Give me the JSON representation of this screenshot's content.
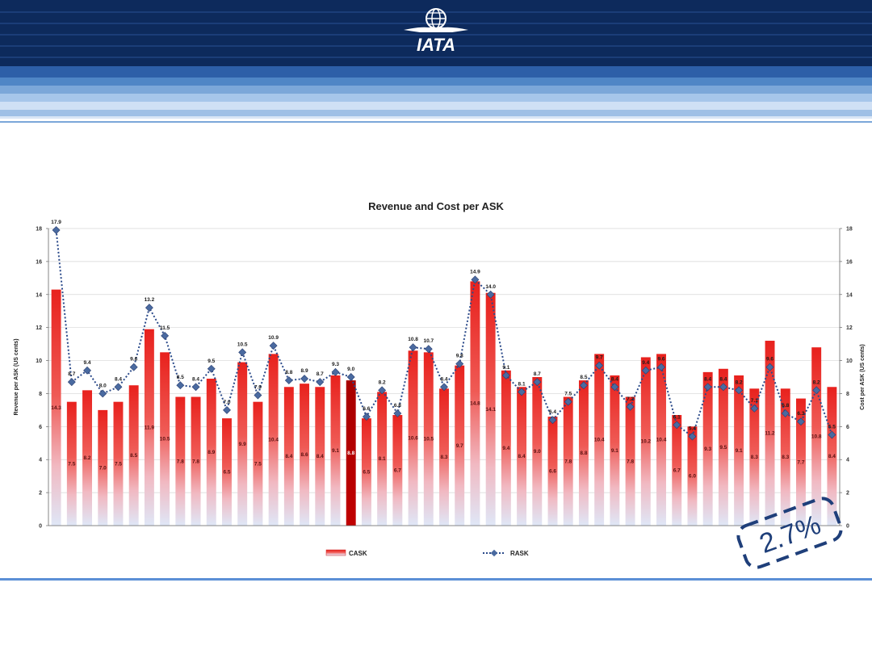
{
  "header": {
    "logo_text": "IATA"
  },
  "stamp": {
    "text": "2.7%"
  },
  "colors": {
    "banner_dark": "#0d2a5c",
    "bar_red": "#e8211d",
    "bar_highlight": "#b00000",
    "rask_line": "#2b4a8a",
    "marker": "#4a6aa0"
  },
  "chart_data": {
    "type": "bar",
    "title": "Revenue and Cost per ASK",
    "ylabel_left": "Revenue per ASK (US cents)",
    "ylabel_right": "Cost per ASK (US cents)",
    "ylim": [
      0,
      18
    ],
    "yticks": [
      0,
      2,
      4,
      6,
      8,
      10,
      12,
      14,
      16,
      18
    ],
    "highlight_index": 19,
    "grid": true,
    "legend": {
      "position": "bottom",
      "cask": "CASK",
      "rask": "RASK"
    },
    "series": [
      {
        "name": "CASK",
        "kind": "bar",
        "values": [
          14.3,
          7.5,
          8.2,
          7.0,
          7.5,
          8.5,
          11.9,
          10.5,
          7.8,
          7.8,
          8.9,
          6.5,
          9.9,
          7.5,
          10.4,
          8.4,
          8.6,
          8.4,
          9.1,
          8.8,
          6.5,
          8.1,
          6.7,
          10.6,
          10.5,
          8.3,
          9.7,
          14.8,
          14.1,
          9.4,
          8.4,
          9.0,
          6.6,
          7.8,
          8.8,
          10.4,
          9.1,
          7.8,
          10.2,
          10.4,
          6.7,
          6.0,
          9.3,
          9.5,
          9.1,
          8.3,
          11.2,
          8.3,
          7.7,
          10.8,
          8.4
        ]
      },
      {
        "name": "RASK",
        "kind": "line",
        "values": [
          17.9,
          8.7,
          9.4,
          8.0,
          8.4,
          9.6,
          13.2,
          11.5,
          8.5,
          8.4,
          9.5,
          7.0,
          10.5,
          7.9,
          10.9,
          8.8,
          8.9,
          8.7,
          9.3,
          9.0,
          6.6,
          8.2,
          6.8,
          10.8,
          10.7,
          8.4,
          9.8,
          14.9,
          14.0,
          9.1,
          8.1,
          8.7,
          6.4,
          7.5,
          8.5,
          9.7,
          8.4,
          7.2,
          9.4,
          9.6,
          6.1,
          5.4,
          8.4,
          8.4,
          8.2,
          7.1,
          9.6,
          6.8,
          6.3,
          8.2,
          5.5
        ]
      }
    ]
  }
}
